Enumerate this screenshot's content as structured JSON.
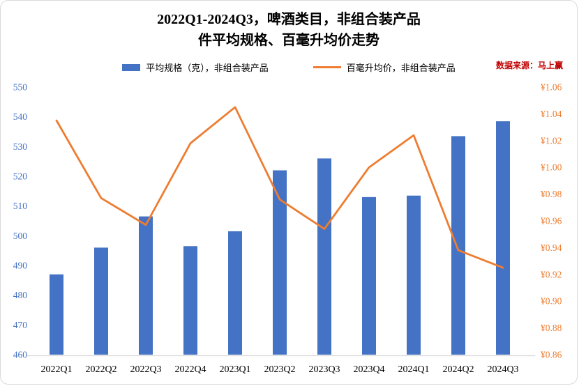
{
  "title": {
    "line1": "2022Q1-2024Q3，啤酒类目，非组合装产品",
    "line2": "件平均规格、百毫升均价走势"
  },
  "legend": {
    "bars_label": "平均规格（克），非组合装产品",
    "line_label": "百毫升均价，非组合装产品"
  },
  "source_note": "数据来源：马上赢",
  "colors": {
    "bar": "#4472C4",
    "line": "#ED7D31",
    "left_axis_text": "#4472C4",
    "right_axis_text": "#ED7D31",
    "source_text": "#C00000",
    "axis_line": "#D9D9D9",
    "category_text": "#000000"
  },
  "chart_data": {
    "type": "bar+line",
    "title": "2022Q1-2024Q3，啤酒类目，非组合装产品 件平均规格、百毫升均价走势",
    "categories": [
      "2022Q1",
      "2022Q2",
      "2022Q3",
      "2022Q4",
      "2023Q1",
      "2023Q2",
      "2023Q3",
      "2023Q4",
      "2024Q1",
      "2024Q2",
      "2024Q3"
    ],
    "series": [
      {
        "name": "平均规格（克），非组合装产品",
        "type": "bar",
        "axis": "left",
        "values": [
          487,
          496,
          506.5,
          496.5,
          501.5,
          522,
          526,
          513,
          513.5,
          533.5,
          538.5
        ]
      },
      {
        "name": "百毫升均价，非组合装产品",
        "type": "line",
        "axis": "right",
        "values": [
          1.035,
          0.977,
          0.957,
          1.018,
          1.045,
          0.976,
          0.954,
          1.0,
          1.024,
          0.938,
          0.925
        ]
      }
    ],
    "left_axis": {
      "min": 460,
      "max": 550,
      "step": 10,
      "ticks": [
        "550",
        "540",
        "530",
        "520",
        "510",
        "500",
        "490",
        "480",
        "470",
        "460"
      ]
    },
    "right_axis": {
      "min": 0.86,
      "max": 1.06,
      "step": 0.02,
      "tick_labels": [
        "¥1.06",
        "¥1.04",
        "¥1.02",
        "¥1.00",
        "¥0.98",
        "¥0.96",
        "¥0.94",
        "¥0.92",
        "¥0.90",
        "¥0.88",
        "¥0.86"
      ]
    },
    "grid": false,
    "legend_position": "top"
  }
}
